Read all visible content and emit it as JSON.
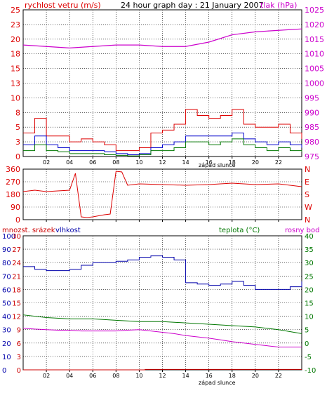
{
  "colors": {
    "wind": "#dd0000",
    "gust": "#dd0000",
    "wind_avg": "#0000cc",
    "wind_green": "#007700",
    "pressure": "#cc00cc",
    "direction": "#dd0000",
    "humidity": "#0000aa",
    "temperature": "#007700",
    "dewpoint": "#cc00cc",
    "rain": "#cc0000",
    "axis_dark": "#000000"
  },
  "chart_data": [
    {
      "type": "line",
      "title": "24 hour graph day : 21 January 2007",
      "ylabel_left": "rychlost vetru (m/s)",
      "ylabel_right": "tlak (hPa)",
      "xlabel": "západ slunce",
      "x_ticks": [
        "02",
        "04",
        "06",
        "08",
        "10",
        "12",
        "14",
        "16",
        "18",
        "20",
        "22"
      ],
      "xlim": [
        0,
        24
      ],
      "ylim_left": [
        0,
        25
      ],
      "ylim_right": [
        975,
        1025
      ],
      "y_ticks_left": [
        "0",
        "3",
        "5",
        "8",
        "10",
        "13",
        "15",
        "18",
        "20",
        "23",
        "25"
      ],
      "y_ticks_right": [
        "975",
        "980",
        "985",
        "990",
        "995",
        "1000",
        "1005",
        "1010",
        "1015",
        "1020",
        "1025"
      ],
      "grid": true,
      "series": [
        {
          "name": "rychlost vetru",
          "axis": "left",
          "color_key": "wind",
          "x": [
            0,
            1,
            2,
            3,
            4,
            5,
            6,
            7,
            8,
            9,
            10,
            11,
            12,
            13,
            14,
            15,
            16,
            17,
            18,
            19,
            20,
            21,
            22,
            23,
            24
          ],
          "y": [
            4.0,
            6.5,
            3.5,
            3.5,
            2.5,
            3.0,
            2.5,
            2.0,
            1.0,
            1.0,
            1.5,
            4.0,
            4.5,
            5.5,
            8.0,
            7.0,
            6.5,
            7.0,
            8.0,
            5.5,
            5.0,
            5.0,
            5.5,
            4.0,
            3.0
          ]
        },
        {
          "name": "prumer",
          "axis": "left",
          "color_key": "wind_avg",
          "x": [
            0,
            1,
            2,
            3,
            4,
            5,
            6,
            7,
            8,
            9,
            10,
            11,
            12,
            13,
            14,
            15,
            16,
            17,
            18,
            19,
            20,
            21,
            22,
            23,
            24
          ],
          "y": [
            2.0,
            3.5,
            2.0,
            1.5,
            1.0,
            1.0,
            1.0,
            0.8,
            0.5,
            0.3,
            0.5,
            1.5,
            2.0,
            2.5,
            3.5,
            3.5,
            3.5,
            3.5,
            4.0,
            3.0,
            2.5,
            2.0,
            2.5,
            2.0,
            1.5
          ]
        },
        {
          "name": "naraz",
          "axis": "left",
          "color_key": "wind_green",
          "x": [
            0,
            1,
            2,
            3,
            4,
            5,
            6,
            7,
            8,
            9,
            10,
            11,
            12,
            13,
            14,
            15,
            16,
            17,
            18,
            19,
            20,
            21,
            22,
            23,
            24
          ],
          "y": [
            1.0,
            2.0,
            1.0,
            0.8,
            0.5,
            0.5,
            0.5,
            0.3,
            0.2,
            0.1,
            0.3,
            1.0,
            1.0,
            1.5,
            2.5,
            2.5,
            2.0,
            2.5,
            3.0,
            2.0,
            1.5,
            1.0,
            1.5,
            1.0,
            0.8
          ]
        },
        {
          "name": "tlak",
          "axis": "right",
          "color_key": "pressure",
          "x": [
            0,
            2,
            4,
            6,
            8,
            10,
            12,
            14,
            16,
            18,
            20,
            22,
            24
          ],
          "y": [
            1013.0,
            1012.5,
            1012.0,
            1012.5,
            1013.0,
            1013.0,
            1012.5,
            1012.5,
            1014.0,
            1016.5,
            1017.5,
            1018.0,
            1018.5
          ]
        }
      ]
    },
    {
      "type": "line",
      "title": "",
      "ylabel_right": "NWSEN",
      "ylim": [
        0,
        360
      ],
      "y_ticks_left": [
        "0",
        "90",
        "180",
        "270",
        "360"
      ],
      "y_ticks_right": [
        "N",
        "W",
        "S",
        "E",
        "N"
      ],
      "x_ticks": [
        "02",
        "04",
        "06",
        "08",
        "10",
        "12",
        "14",
        "16",
        "18",
        "20",
        "22"
      ],
      "xlim": [
        0,
        24
      ],
      "grid": true,
      "series": [
        {
          "name": "smer vetru",
          "color_key": "direction",
          "x": [
            0,
            1,
            2,
            3,
            4,
            4.5,
            5,
            5.5,
            6,
            7,
            7.5,
            8,
            8.5,
            9,
            10,
            12,
            14,
            16,
            18,
            20,
            22,
            24
          ],
          "y": [
            200,
            210,
            200,
            205,
            210,
            330,
            20,
            15,
            20,
            35,
            40,
            345,
            340,
            245,
            255,
            250,
            245,
            250,
            260,
            250,
            255,
            235
          ]
        }
      ]
    },
    {
      "type": "line",
      "title": "",
      "legend_left": "mnozst. srázek",
      "legend_humidity": "vlhkost",
      "legend_temperature": "teplota (°C)",
      "legend_dewpoint": "rosny bod",
      "xlabel": "západ slunce",
      "x_ticks": [
        "02",
        "04",
        "06",
        "08",
        "10",
        "12",
        "14",
        "16",
        "18",
        "20",
        "22"
      ],
      "xlim": [
        0,
        24
      ],
      "ylim_humidity": [
        0,
        100
      ],
      "ylim_rain": [
        0,
        30
      ],
      "ylim_temperature": [
        -10,
        40
      ],
      "y_ticks_humidity": [
        "0",
        "10",
        "20",
        "30",
        "40",
        "50",
        "60",
        "70",
        "80",
        "90",
        "100"
      ],
      "y_ticks_rain": [
        "0",
        "3",
        "6",
        "9",
        "12",
        "15",
        "18",
        "21",
        "24",
        "27",
        "30"
      ],
      "y_ticks_temperature": [
        "-10",
        "-5",
        "0",
        "5",
        "10",
        "15",
        "20",
        "25",
        "30",
        "35",
        "40"
      ],
      "grid": true,
      "series": [
        {
          "name": "vlhkost",
          "axis": "humidity",
          "color_key": "humidity",
          "x": [
            0,
            1,
            2,
            3,
            4,
            5,
            6,
            7,
            8,
            9,
            10,
            11,
            12,
            13,
            14,
            15,
            16,
            17,
            18,
            19,
            20,
            21,
            22,
            23,
            24
          ],
          "y": [
            77,
            75,
            74,
            74,
            75,
            78,
            80,
            80,
            81,
            82,
            84,
            85,
            84,
            82,
            65,
            64,
            63,
            64,
            66,
            63,
            60,
            60,
            60,
            62,
            66
          ]
        },
        {
          "name": "teplota",
          "axis": "temperature",
          "color_key": "temperature",
          "x": [
            0,
            2,
            4,
            6,
            8,
            10,
            12,
            14,
            16,
            18,
            20,
            22,
            24
          ],
          "y": [
            10.5,
            9.5,
            9.0,
            9.0,
            8.5,
            8.0,
            8.0,
            7.5,
            7.0,
            6.5,
            6.0,
            5.0,
            3.5
          ]
        },
        {
          "name": "rosny bod",
          "axis": "temperature",
          "color_key": "dewpoint",
          "x": [
            0,
            1,
            2,
            3,
            4,
            5,
            6,
            7,
            8,
            9,
            10,
            11,
            12,
            13,
            14,
            15,
            16,
            17,
            18,
            19,
            20,
            21,
            22,
            23,
            24
          ],
          "y": [
            5.5,
            5.2,
            5.0,
            4.8,
            4.8,
            4.5,
            4.5,
            4.5,
            4.5,
            4.8,
            5.0,
            4.5,
            4.0,
            3.5,
            2.8,
            2.3,
            1.8,
            1.2,
            0.5,
            0.0,
            -0.5,
            -1.0,
            -1.5,
            -1.5,
            -1.5
          ]
        },
        {
          "name": "mnozst. srázek",
          "axis": "rain",
          "color_key": "rain",
          "x": [
            0,
            10.5,
            10.5,
            24
          ],
          "y": [
            0,
            0,
            0.1,
            0.1
          ]
        }
      ]
    }
  ]
}
